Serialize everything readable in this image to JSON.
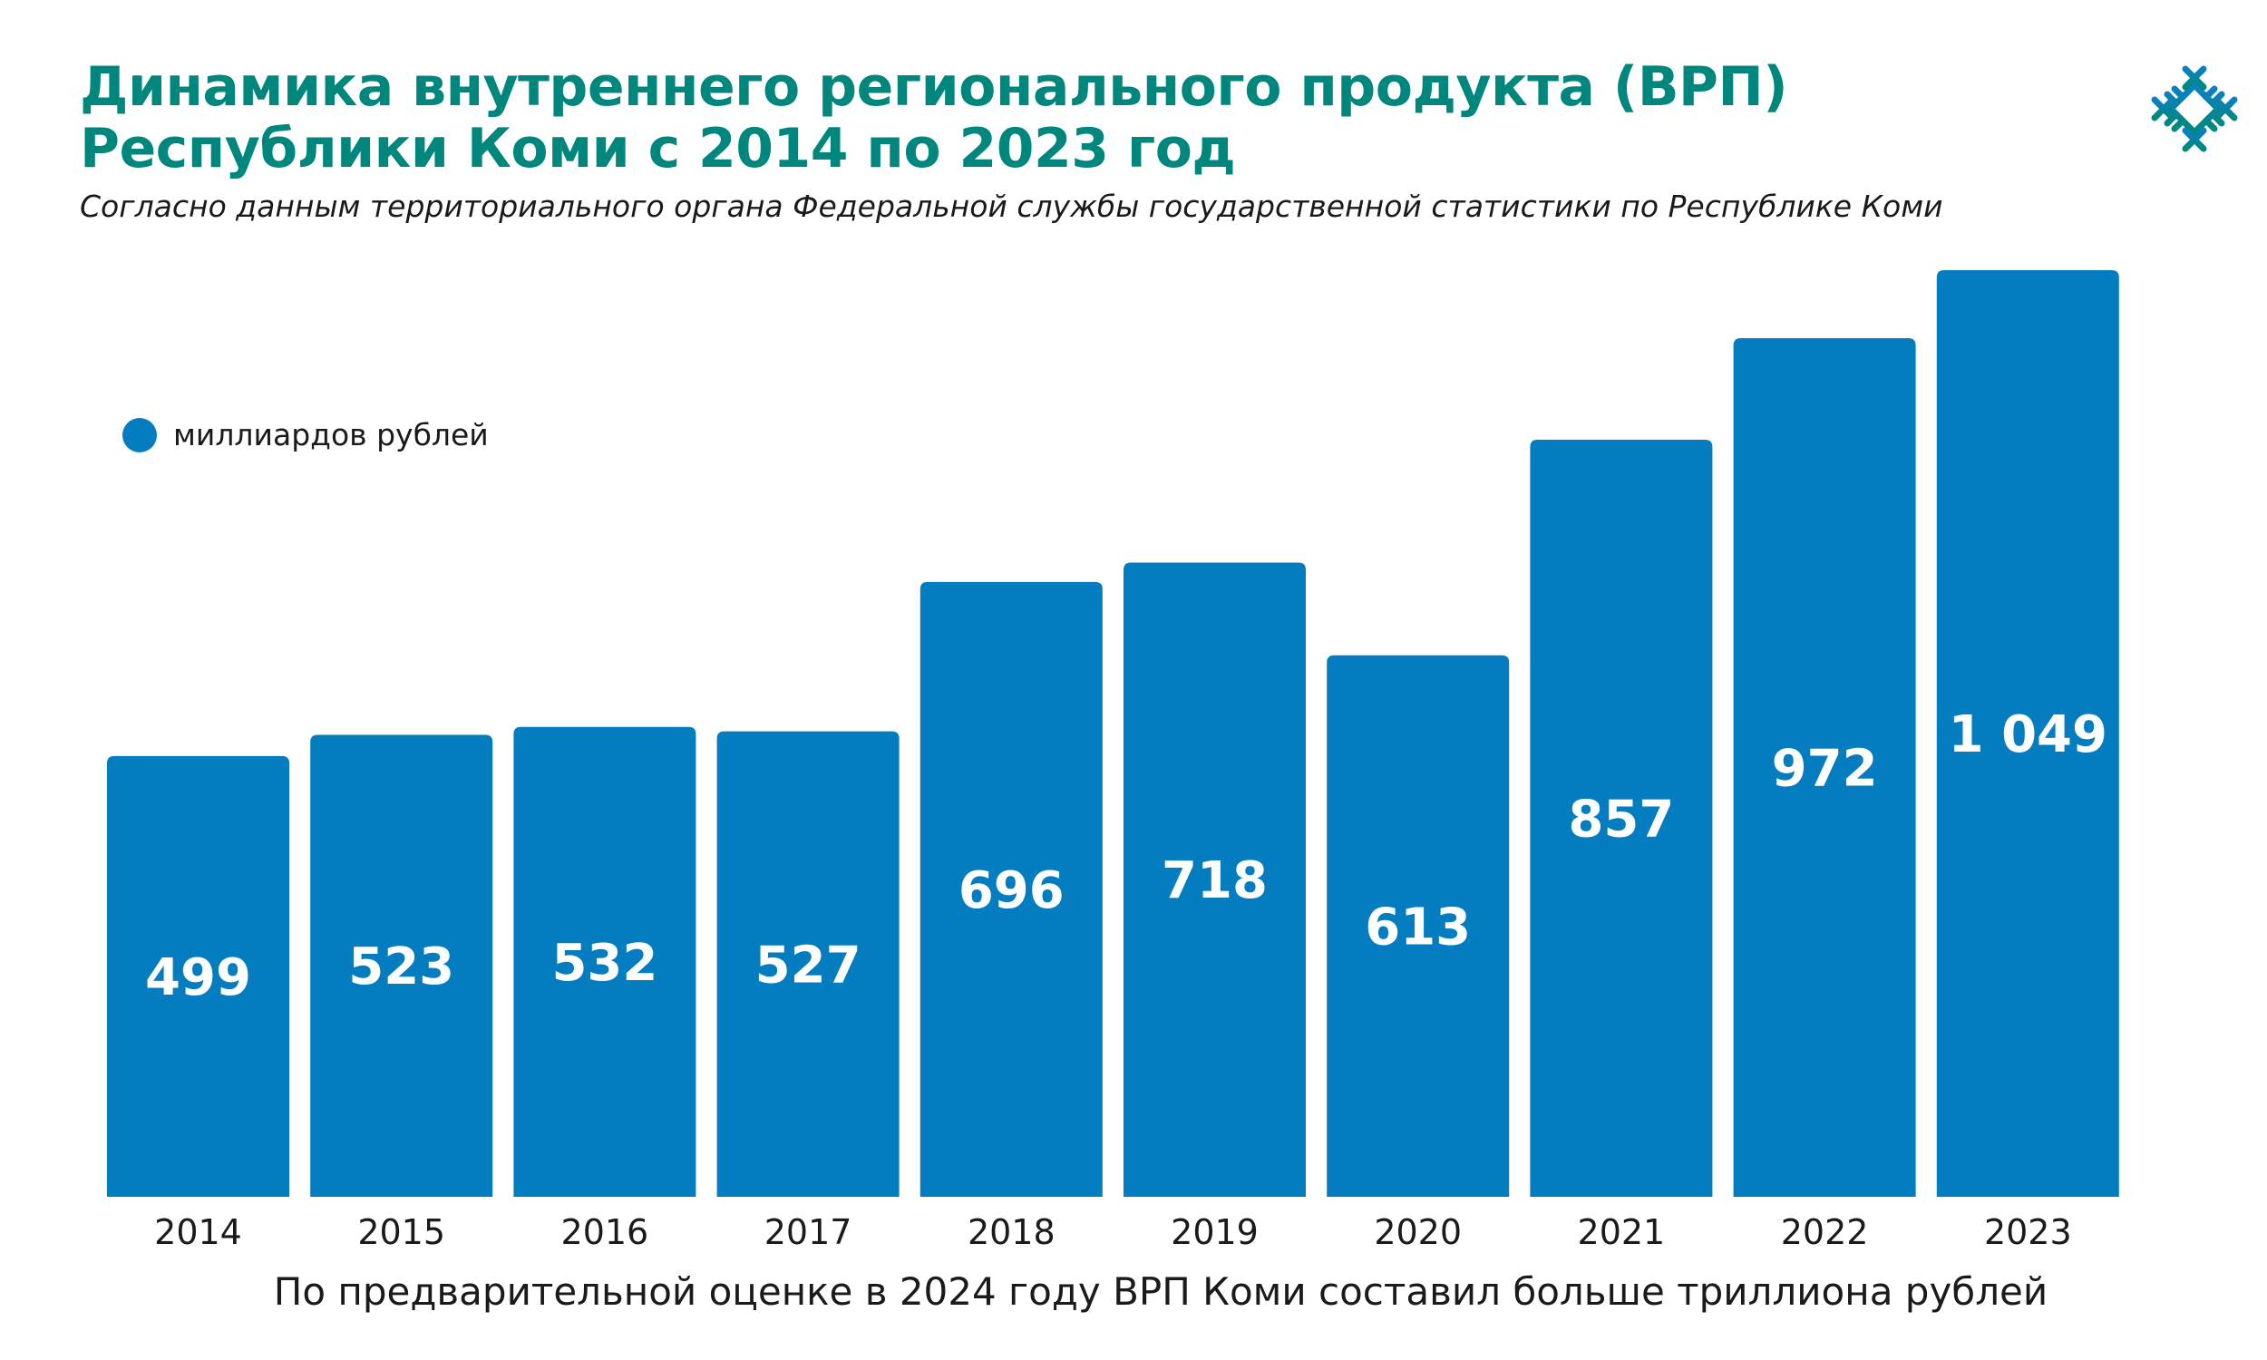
{
  "header": {
    "title_line1": "Динамика внутреннего регионального продукта (ВРП)",
    "title_line2": "Республики Коми с 2014 по 2023 год",
    "subtitle": "Согласно данным территориального органа Федеральной службы государственной статистики по Республике Коми",
    "logo_icon": "komi-ornament-icon"
  },
  "colors": {
    "title": "#00877d",
    "bar": "#037dc0",
    "logo_top": "#0a7fc4",
    "logo_bottom": "#00897b"
  },
  "footer": {
    "note": "По предварительной оценке в 2024 году ВРП Коми составил больше триллиона рублей"
  },
  "chart_data": {
    "type": "bar",
    "title": "",
    "xlabel": "",
    "ylabel": "",
    "legend": {
      "position": "top-left",
      "entries": [
        "миллиардов рублей"
      ]
    },
    "grid": false,
    "ylim": [
      0,
      1049
    ],
    "categories": [
      "2014",
      "2015",
      "2016",
      "2017",
      "2018",
      "2019",
      "2020",
      "2021",
      "2022",
      "2023"
    ],
    "series": [
      {
        "name": "миллиардов рублей",
        "values": [
          499,
          523,
          532,
          527,
          696,
          718,
          613,
          857,
          972,
          1049
        ],
        "labels": [
          "499",
          "523",
          "532",
          "527",
          "696",
          "718",
          "613",
          "857",
          "972",
          "1 049"
        ]
      }
    ]
  }
}
